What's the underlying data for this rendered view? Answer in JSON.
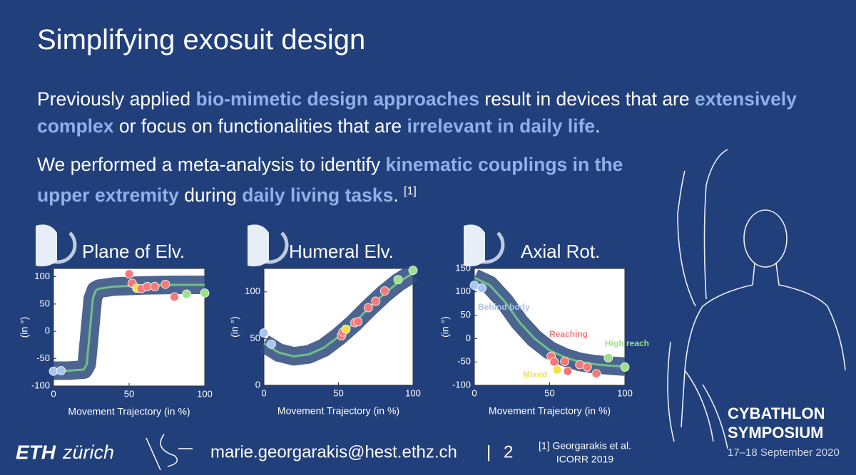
{
  "slide": {
    "title": "Simplifying exosuit design",
    "paragraphs": [
      [
        {
          "text": "Previously applied "
        },
        {
          "text": "bio-mimetic design approaches",
          "emphasis": true
        },
        {
          "text": " result in devices that are "
        },
        {
          "text": "extensively complex",
          "emphasis": true
        },
        {
          "text": " or focus on functionalities that are "
        },
        {
          "text": "irrelevant in daily life",
          "emphasis": true
        },
        {
          "text": "."
        }
      ],
      [
        {
          "text": "We performed a meta-analysis to identify "
        },
        {
          "text": "kinematic couplings in the upper extremity",
          "emphasis": true
        },
        {
          "text": " during "
        },
        {
          "text": "daily living tasks",
          "emphasis": true
        },
        {
          "text": ". "
        },
        {
          "text": "[1]",
          "superscript": true
        }
      ]
    ],
    "emphasis_color": "#8fb0e8"
  },
  "chart_data": [
    {
      "type": "scatter",
      "title": "Plane of Elv.",
      "x_label": "Movement Trajectory (in %)",
      "y_label": "(in °)",
      "xlim": [
        0,
        100
      ],
      "xticks": [
        0,
        50,
        100
      ],
      "ylim": [
        -100,
        115
      ],
      "yticks": [
        -100,
        -50,
        0,
        50,
        100
      ],
      "x": [
        0,
        5,
        50,
        52,
        55,
        58,
        62,
        67,
        74,
        80,
        88,
        100
      ],
      "values": [
        -73,
        -72,
        105,
        88,
        79,
        78,
        82,
        82,
        86,
        63,
        68,
        70
      ],
      "colors": [
        "#a8c4f0",
        "#a8c4f0",
        "#f47a7a",
        "#f47a7a",
        "#f5e04a",
        "#f47a7a",
        "#f47a7a",
        "#f47a7a",
        "#f47a7a",
        "#f47a7a",
        "#9be08a",
        "#9be08a"
      ],
      "fit": {
        "x": [
          0,
          10,
          20,
          22,
          24,
          26,
          28,
          30,
          40,
          60,
          80,
          100
        ],
        "values": [
          -72,
          -72,
          -70,
          -60,
          0,
          60,
          75,
          78,
          82,
          84,
          85,
          85
        ],
        "color": "#6fbf8a"
      }
    },
    {
      "type": "scatter",
      "title": "Humeral Elv.",
      "x_label": "Movement Trajectory (in %)",
      "y_label": "(in °)",
      "xlim": [
        0,
        100
      ],
      "xticks": [
        0,
        50,
        100
      ],
      "ylim": [
        0,
        125
      ],
      "yticks": [
        0,
        50,
        100
      ],
      "x": [
        0,
        5,
        52,
        53,
        55,
        61,
        63,
        70,
        75,
        81,
        90,
        100
      ],
      "values": [
        56,
        44,
        53,
        57,
        60,
        67,
        68,
        83,
        90,
        101,
        113,
        123
      ],
      "colors": [
        "#a8c4f0",
        "#a8c4f0",
        "#f47a7a",
        "#f47a7a",
        "#f5e04a",
        "#f47a7a",
        "#f47a7a",
        "#f47a7a",
        "#f47a7a",
        "#f47a7a",
        "#9be08a",
        "#9be08a"
      ],
      "fit": {
        "x": [
          0,
          10,
          20,
          30,
          40,
          50,
          60,
          70,
          80,
          90,
          100
        ],
        "values": [
          45,
          35,
          31,
          33,
          40,
          52,
          66,
          82,
          97,
          110,
          120
        ],
        "color": "#6fbf8a"
      }
    },
    {
      "type": "scatter",
      "title": "Axial Rot.",
      "x_label": "Movement Trajectory (in %)",
      "y_label": "(in °)",
      "xlim": [
        0,
        100
      ],
      "xticks": [
        0,
        50,
        100
      ],
      "ylim": [
        -100,
        150
      ],
      "yticks": [
        -100,
        -50,
        0,
        50,
        100,
        150
      ],
      "x": [
        0,
        5,
        51,
        53,
        55,
        60,
        62,
        70,
        75,
        81,
        89,
        100
      ],
      "values": [
        114,
        108,
        -38,
        -50,
        -67,
        -49,
        -70,
        -56,
        -61,
        -75,
        -41,
        -61
      ],
      "colors": [
        "#a8c4f0",
        "#a8c4f0",
        "#f47a7a",
        "#f47a7a",
        "#f5e04a",
        "#f47a7a",
        "#f47a7a",
        "#f47a7a",
        "#f47a7a",
        "#f47a7a",
        "#9be08a",
        "#9be08a"
      ],
      "fit": {
        "x": [
          0,
          10,
          20,
          30,
          40,
          50,
          60,
          70,
          80,
          90,
          100
        ],
        "values": [
          130,
          115,
          80,
          35,
          0,
          -25,
          -40,
          -50,
          -55,
          -58,
          -60
        ],
        "color": "#6fbf8a"
      },
      "annotations": [
        {
          "text": "Behind body",
          "color": "#a8c4f0"
        },
        {
          "text": "Reaching",
          "color": "#f47a7a"
        },
        {
          "text": "High reach",
          "color": "#9be08a"
        },
        {
          "text": "Mixed",
          "color": "#f5e04a"
        }
      ]
    }
  ],
  "footer": {
    "logo": [
      "ETH",
      "zürich"
    ],
    "email": "marie.georgarakis@hest.ethz.ch",
    "separator": "|",
    "page_number": "2",
    "citation": [
      "[1] Georgarakis et al.",
      "ICORR 2019"
    ],
    "event": [
      "CYBATHLON",
      "SYMPOSIUM"
    ],
    "event_date": "17–18 September 2020"
  }
}
